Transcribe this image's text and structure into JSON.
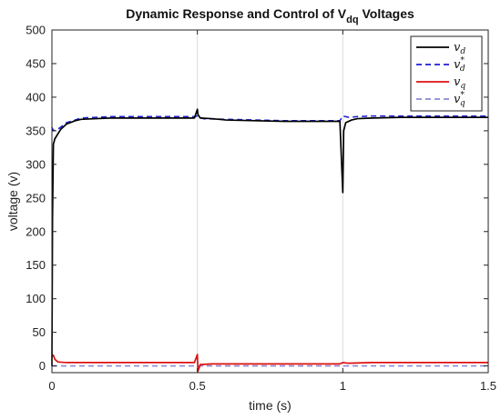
{
  "chart_data": {
    "type": "line",
    "title": "Dynamic Response and Control of V",
    "title_subscript": "dq",
    "title_suffix": " Voltages",
    "xlabel": "time (s)",
    "ylabel": "voltage (v)",
    "xlim": [
      0,
      1.5
    ],
    "ylim": [
      -10,
      500
    ],
    "xticks": [
      0,
      0.5,
      1,
      1.5
    ],
    "xtick_labels": [
      "0",
      "0.5",
      "1",
      "1.5"
    ],
    "yticks": [
      0,
      50,
      100,
      150,
      200,
      250,
      300,
      350,
      400,
      450,
      500
    ],
    "ytick_labels": [
      "0",
      "50",
      "100",
      "150",
      "200",
      "250",
      "300",
      "350",
      "400",
      "450",
      "500"
    ],
    "grid": true,
    "legend_position": "top-right",
    "series": [
      {
        "name": "v_d",
        "legend_main": "v",
        "legend_sub": "d",
        "legend_sup": "",
        "color": "#000000",
        "dash": "solid",
        "x": [
          0,
          0.002,
          0.005,
          0.01,
          0.02,
          0.03,
          0.05,
          0.08,
          0.1,
          0.15,
          0.2,
          0.3,
          0.4,
          0.49,
          0.5,
          0.502,
          0.51,
          0.55,
          0.6,
          0.7,
          0.8,
          0.9,
          0.99,
          1.0,
          1.003,
          1.01,
          1.03,
          1.05,
          1.1,
          1.2,
          1.3,
          1.4,
          1.5
        ],
        "values": [
          0,
          220,
          330,
          338,
          345,
          352,
          360,
          365,
          367,
          368,
          369,
          369,
          369,
          369,
          382,
          374,
          369,
          368,
          366,
          365,
          364,
          364,
          364,
          258,
          350,
          362,
          366,
          368,
          369,
          370,
          370,
          370,
          370
        ]
      },
      {
        "name": "v_d^*",
        "legend_main": "v",
        "legend_sub": "d",
        "legend_sup": "*",
        "color": "#1f1fd6",
        "dash": "dashed",
        "x": [
          0,
          0.005,
          0.02,
          0.05,
          0.08,
          0.1,
          0.2,
          0.3,
          0.4,
          0.49,
          0.5,
          0.52,
          0.6,
          0.7,
          0.8,
          0.9,
          0.99,
          1.0,
          1.02,
          1.05,
          1.1,
          1.2,
          1.3,
          1.4,
          1.5
        ],
        "values": [
          355,
          350,
          352,
          362,
          366,
          369,
          371,
          371,
          371,
          371,
          372,
          368,
          367,
          366,
          365,
          365,
          365,
          372,
          370,
          371,
          372,
          372,
          372,
          372,
          372
        ]
      },
      {
        "name": "v_q",
        "legend_main": "v",
        "legend_sub": "q",
        "legend_sup": "",
        "color": "#dd1010",
        "dash": "solid",
        "x": [
          0,
          0.005,
          0.01,
          0.02,
          0.05,
          0.1,
          0.2,
          0.3,
          0.4,
          0.49,
          0.5,
          0.502,
          0.51,
          0.55,
          0.6,
          0.7,
          0.8,
          0.9,
          0.99,
          1.0,
          1.02,
          1.1,
          1.2,
          1.3,
          1.4,
          1.5
        ],
        "values": [
          14,
          16,
          10,
          6,
          5,
          5,
          5,
          5,
          5,
          5,
          17,
          -8,
          2,
          3,
          3,
          3,
          3,
          3,
          3,
          5,
          4,
          5,
          5,
          5,
          5,
          5
        ]
      },
      {
        "name": "v_q^*",
        "legend_main": "v",
        "legend_sub": "q",
        "legend_sup": "*",
        "color": "#8a8ad8",
        "dash": "dashed",
        "x": [
          0,
          1.5
        ],
        "values": [
          0,
          0
        ]
      }
    ]
  }
}
